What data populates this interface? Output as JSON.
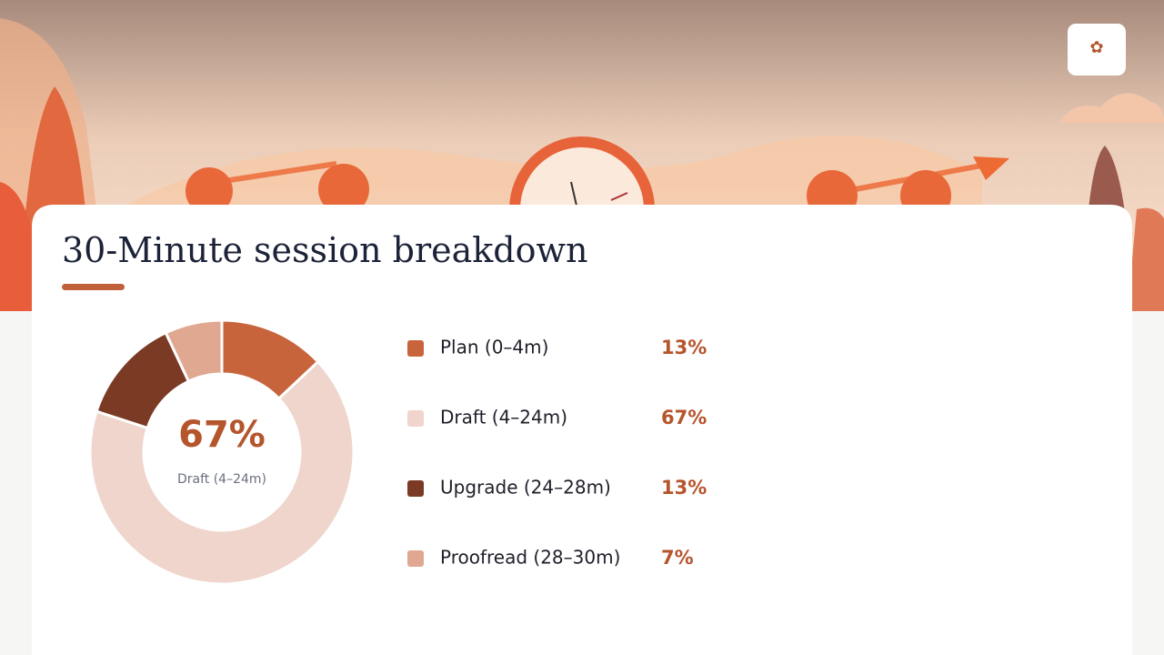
{
  "chart_data": {
    "type": "donut",
    "title": "30-Minute session breakdown",
    "categories": [
      "Plan (0–4m)",
      "Draft (4–24m)",
      "Upgrade (24–28m)",
      "Proofread (28–30m)"
    ],
    "values": [
      13,
      67,
      13,
      7
    ],
    "value_labels": [
      "13%",
      "67%",
      "13%",
      "7%"
    ],
    "colors": [
      "#c8643c",
      "#efd5cb",
      "#7a3a24",
      "#e0a890"
    ],
    "highlight": 1
  }
}
